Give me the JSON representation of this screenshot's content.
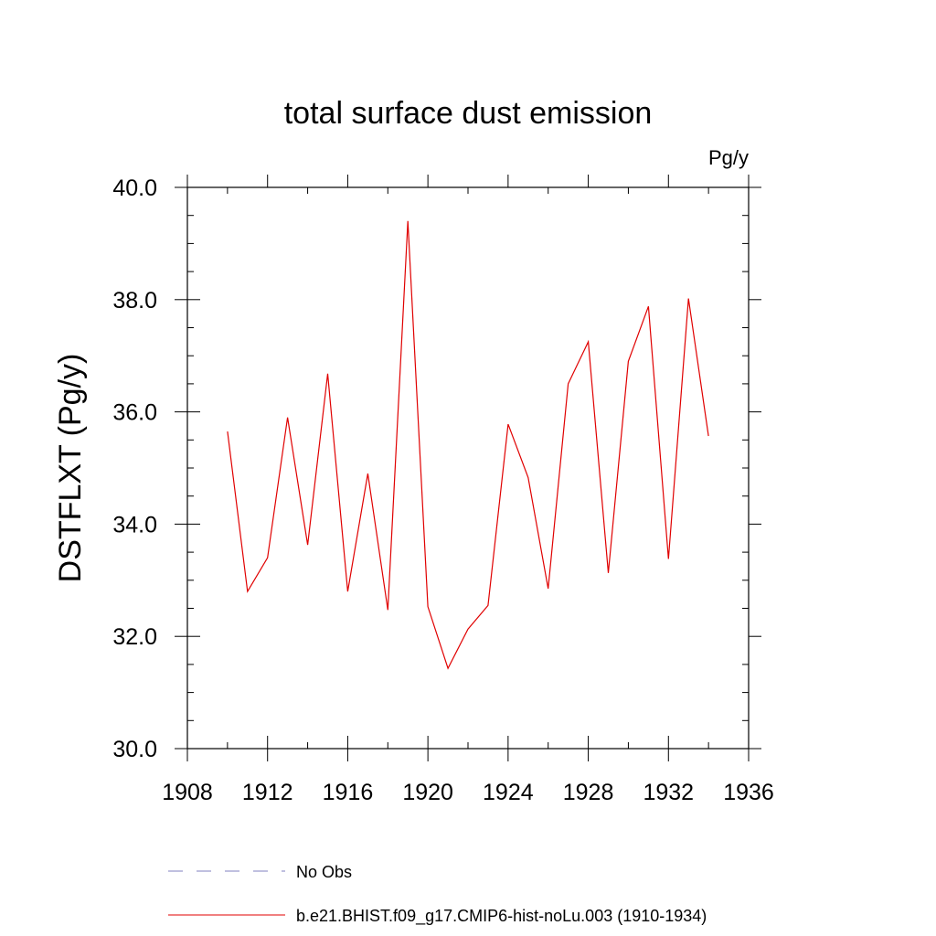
{
  "chart_data": {
    "type": "line",
    "title": "total surface dust emission",
    "units_label": "Pg/y",
    "ylabel": "DSTFLXT  (Pg/y)",
    "xlabel": "",
    "xlim": [
      1908,
      1936
    ],
    "ylim": [
      30.0,
      40.0
    ],
    "x_major_ticks": [
      1908,
      1912,
      1916,
      1920,
      1924,
      1928,
      1932,
      1936
    ],
    "x_tick_labels": [
      "1908",
      "1912",
      "1916",
      "1920",
      "1924",
      "1928",
      "1932",
      "1936"
    ],
    "x_minor_step": 2,
    "y_major_ticks": [
      30.0,
      32.0,
      34.0,
      36.0,
      38.0,
      40.0
    ],
    "y_tick_labels": [
      "30.0",
      "32.0",
      "34.0",
      "36.0",
      "38.0",
      "40.0"
    ],
    "y_minor_step": 0.5,
    "grid": false,
    "series": [
      {
        "name": "b.e21.BHIST.f09_g17.CMIP6-hist-noLu.003 (1910-1934)",
        "color": "#e00000",
        "style": "solid",
        "x": [
          1910,
          1911,
          1912,
          1913,
          1914,
          1915,
          1916,
          1917,
          1918,
          1919,
          1920,
          1921,
          1922,
          1923,
          1924,
          1925,
          1926,
          1927,
          1928,
          1929,
          1930,
          1931,
          1932,
          1933,
          1934
        ],
        "values": [
          35.65,
          32.8,
          33.4,
          35.9,
          33.63,
          36.68,
          32.8,
          34.9,
          32.47,
          39.4,
          32.53,
          31.43,
          32.13,
          32.55,
          35.78,
          34.83,
          32.85,
          36.5,
          37.25,
          33.13,
          36.9,
          37.88,
          33.38,
          38.02,
          35.57
        ]
      }
    ],
    "legend": {
      "position": "bottom",
      "entries": [
        {
          "label": "No Obs",
          "color": "#8080c0",
          "style": "dashed"
        },
        {
          "label": "b.e21.BHIST.f09_g17.CMIP6-hist-noLu.003 (1910-1934)",
          "color": "#e00000",
          "style": "solid"
        }
      ]
    }
  }
}
